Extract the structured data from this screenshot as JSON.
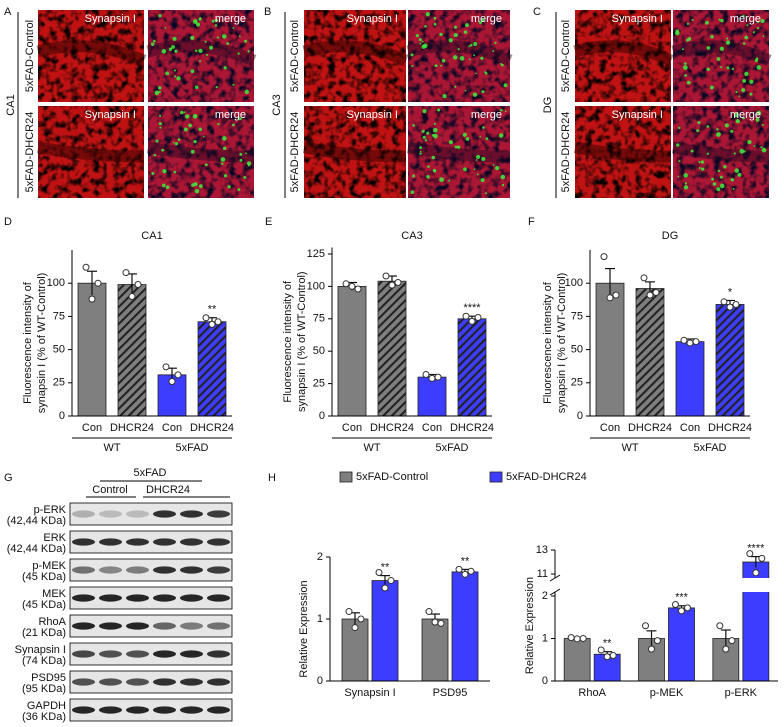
{
  "panels": [
    {
      "letter": "A",
      "region": "CA1",
      "rows": [
        "5xFAD-Control",
        "5xFAD-DHCR24"
      ],
      "columns": [
        "Synapsin I",
        "merge"
      ]
    },
    {
      "letter": "B",
      "region": "CA3",
      "rows": [
        "5xFAD-Control",
        "5xFAD-DHCR24"
      ],
      "columns": [
        "Synapsin I",
        "merge"
      ]
    },
    {
      "letter": "C",
      "region": "DG",
      "rows": [
        "5xFAD-Control",
        "5xFAD-DHCR24"
      ],
      "columns": [
        "Synapsin I",
        "merge"
      ]
    }
  ],
  "blot": {
    "letter": "G",
    "group": "5xFAD",
    "conditions": [
      "Control",
      "DHCR24"
    ],
    "rows": [
      {
        "protein": "p-ERK",
        "size": "(42,44 KDa)"
      },
      {
        "protein": "ERK",
        "size": "(42,44 KDa)"
      },
      {
        "protein": "p-MEK",
        "size": "(45 KDa)"
      },
      {
        "protein": "MEK",
        "size": "(45 KDa)"
      },
      {
        "protein": "RhoA",
        "size": "(21 KDa)"
      },
      {
        "protein": "Synapsin I",
        "size": "(74 KDa)"
      },
      {
        "protein": "PSD95",
        "size": "(95 KDa)"
      },
      {
        "protein": "GAPDH",
        "size": "(36 KDa)"
      }
    ]
  },
  "chart_data": [
    {
      "type": "bar",
      "panel": "D",
      "title": "CA1",
      "ylabel": [
        "Fluorescence intensity of",
        "synapsin I (% of WT-Control)"
      ],
      "categories": [
        "Con",
        "DHCR24",
        "Con",
        "DHCR24"
      ],
      "groups": [
        "WT",
        "5xFAD"
      ],
      "values": [
        100,
        99,
        31,
        71
      ],
      "errors": [
        9,
        8,
        5,
        3
      ],
      "points": [
        [
          112,
          100,
          88
        ],
        [
          108,
          99,
          90
        ],
        [
          37,
          31,
          26
        ],
        [
          74,
          71,
          69
        ]
      ],
      "colors": [
        "#7f7f7f",
        "#7f7f7f",
        "#3d3dff",
        "#3d3dff"
      ],
      "hatch": [
        false,
        true,
        false,
        true
      ],
      "annotations": [
        null,
        null,
        null,
        "**"
      ],
      "ylim": [
        0,
        125
      ],
      "yticks": [
        0,
        25,
        50,
        75,
        100
      ]
    },
    {
      "type": "bar",
      "panel": "E",
      "title": "CA3",
      "ylabel": [
        "Fluorescence intensity of",
        "synapsin I (% of WT-Control)"
      ],
      "categories": [
        "Con",
        "DHCR24",
        "Con",
        "DHCR24"
      ],
      "groups": [
        "WT",
        "5xFAD"
      ],
      "values": [
        100,
        104,
        30,
        75
      ],
      "errors": [
        3,
        4,
        2,
        2
      ],
      "points": [
        [
          102,
          98,
          100
        ],
        [
          108,
          103,
          101
        ],
        [
          32,
          30,
          29
        ],
        [
          77,
          76,
          73
        ]
      ],
      "colors": [
        "#7f7f7f",
        "#7f7f7f",
        "#3d3dff",
        "#3d3dff"
      ],
      "hatch": [
        false,
        true,
        false,
        true
      ],
      "annotations": [
        null,
        null,
        null,
        "****"
      ],
      "ylim": [
        0,
        130
      ],
      "yticks": [
        0,
        25,
        50,
        75,
        100,
        125
      ]
    },
    {
      "type": "bar",
      "panel": "F",
      "title": "DG",
      "ylabel": [
        "Fluorescence intensity of",
        "synapsin I (% of WT-Control)"
      ],
      "categories": [
        "Con",
        "DHCR24",
        "Con",
        "DHCR24"
      ],
      "groups": [
        "WT",
        "5xFAD"
      ],
      "values": [
        100,
        96,
        56,
        84
      ],
      "errors": [
        11,
        5,
        2,
        3
      ],
      "points": [
        [
          120,
          91,
          89
        ],
        [
          104,
          93,
          91
        ],
        [
          57,
          56,
          55
        ],
        [
          86,
          84,
          82
        ]
      ],
      "colors": [
        "#7f7f7f",
        "#7f7f7f",
        "#3d3dff",
        "#3d3dff"
      ],
      "hatch": [
        false,
        true,
        false,
        true
      ],
      "annotations": [
        null,
        null,
        null,
        "*"
      ],
      "ylim": [
        0,
        125
      ],
      "yticks": [
        0,
        25,
        50,
        75,
        100
      ]
    },
    {
      "type": "grouped_bar",
      "panel": "H",
      "ylabel": "Relative Expression",
      "legend": "top",
      "categories": [
        "Synapsin I",
        "PSD95"
      ],
      "series": [
        {
          "name": "5xFAD-Control",
          "color": "#7f7f7f",
          "values": [
            1,
            1
          ],
          "errors": [
            0.1,
            0.08
          ],
          "points": [
            [
              1.12,
              1.0,
              0.86
            ],
            [
              1.12,
              0.93,
              0.95
            ]
          ]
        },
        {
          "name": "5xFAD-DHCR24",
          "color": "#3d3dff",
          "values": [
            1.62,
            1.76
          ],
          "errors": [
            0.08,
            0.04
          ],
          "points": [
            [
              1.75,
              1.62,
              1.5
            ],
            [
              1.8,
              1.77,
              1.72
            ]
          ],
          "annotations": [
            "**",
            "**"
          ]
        }
      ],
      "ylim": [
        0,
        2
      ],
      "yticks": [
        0,
        1,
        2
      ]
    },
    {
      "type": "grouped_bar",
      "ylabel": "Relative Expression",
      "categories": [
        "RhoA",
        "p-MEK",
        "p-ERK"
      ],
      "series": [
        {
          "color": "#7f7f7f",
          "values": [
            1,
            1,
            1
          ],
          "errors": [
            0.02,
            0.18,
            0.2
          ],
          "points": [
            [
              1.02,
              1.0,
              0.99
            ],
            [
              1.3,
              0.95,
              0.75
            ],
            [
              1.3,
              0.95,
              0.75
            ]
          ]
        },
        {
          "color": "#3d3dff",
          "values": [
            0.63,
            1.72,
            12.0
          ],
          "errors": [
            0.06,
            0.05,
            0.45
          ],
          "points": [
            [
              0.73,
              0.6,
              0.57
            ],
            [
              1.8,
              1.72,
              1.65
            ],
            [
              12.7,
              12.3,
              11.1
            ]
          ],
          "annotations": [
            "**",
            "***",
            "****"
          ]
        }
      ],
      "ylim": [
        0,
        13
      ],
      "ybreak": [
        2,
        11
      ],
      "yticks": [
        0,
        1,
        2,
        11,
        13
      ]
    }
  ]
}
